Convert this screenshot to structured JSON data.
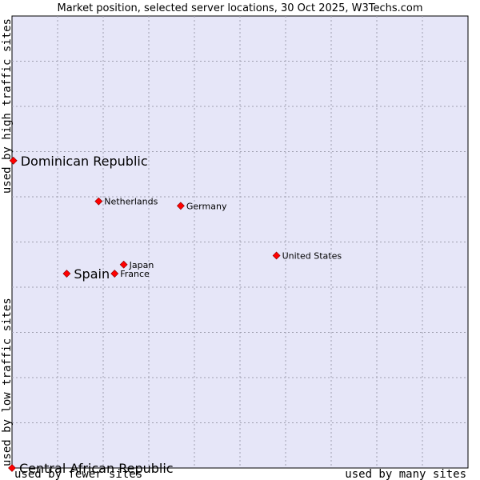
{
  "chart_data": {
    "type": "scatter",
    "title": "Market position, selected server locations, 30 Oct 2025, W3Techs.com",
    "xlabel_low": "used by fewer sites",
    "xlabel_high": "used by many sites",
    "ylabel_low": "used by low traffic sites",
    "ylabel_high": "used by high traffic sites",
    "xlim": [
      0,
      10
    ],
    "ylim": [
      0,
      10
    ],
    "grid": true,
    "point_color": "#ff0000",
    "plot_background": "#e6e6f8",
    "points": [
      {
        "name": "Dominican Republic",
        "x": 0.03,
        "y": 6.8,
        "size": "large"
      },
      {
        "name": "Netherlands",
        "x": 1.9,
        "y": 5.9,
        "size": "small"
      },
      {
        "name": "Germany",
        "x": 3.7,
        "y": 5.8,
        "size": "small"
      },
      {
        "name": "United States",
        "x": 5.8,
        "y": 4.7,
        "size": "small"
      },
      {
        "name": "Japan",
        "x": 2.45,
        "y": 4.5,
        "size": "small"
      },
      {
        "name": "France",
        "x": 2.25,
        "y": 4.3,
        "size": "small"
      },
      {
        "name": "Spain",
        "x": 1.2,
        "y": 4.3,
        "size": "large"
      },
      {
        "name": "Central African Republic",
        "x": 0.0,
        "y": 0.0,
        "size": "large"
      }
    ]
  }
}
